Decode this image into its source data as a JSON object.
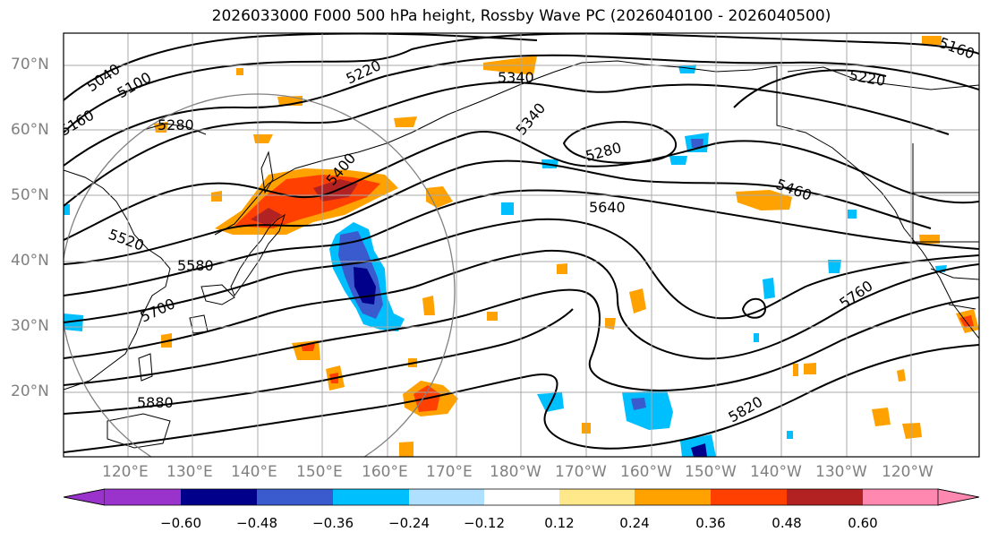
{
  "title": "2026033000 F000 500 hPa height, Rossby Wave PC (2026040100 - 2026040500)",
  "lat_labels": [
    "70°N",
    "60°N",
    "50°N",
    "40°N",
    "30°N",
    "20°N"
  ],
  "lon_labels": [
    "120°E",
    "130°E",
    "140°E",
    "150°E",
    "160°E",
    "170°E",
    "180°W",
    "170°W",
    "160°W",
    "150°W",
    "140°W",
    "130°W",
    "120°W"
  ],
  "contour_labels": [
    "5040",
    "5100",
    "5160",
    "5220",
    "5280",
    "5340",
    "5400",
    "5460",
    "5520",
    "5580",
    "5640",
    "5700",
    "5760",
    "5820",
    "5880",
    "5340",
    "5220",
    "5280",
    "5160"
  ],
  "colorbar": {
    "colors": [
      "#9933cc",
      "#00008b",
      "#3a5bcd",
      "#00bfff",
      "#b0e0ff",
      "#ffffff",
      "#ffe88a",
      "#ffa200",
      "#ff4000",
      "#b22222",
      "#ff88b0"
    ],
    "ticks": [
      "−0.60",
      "−0.48",
      "−0.36",
      "−0.24",
      "−0.12",
      "0.12",
      "0.24",
      "0.36",
      "0.48",
      "0.60"
    ]
  },
  "colors": {
    "frame": "#000000",
    "grid": "#a9a9a9",
    "axis_text": "#808080",
    "contour": "#000000"
  }
}
